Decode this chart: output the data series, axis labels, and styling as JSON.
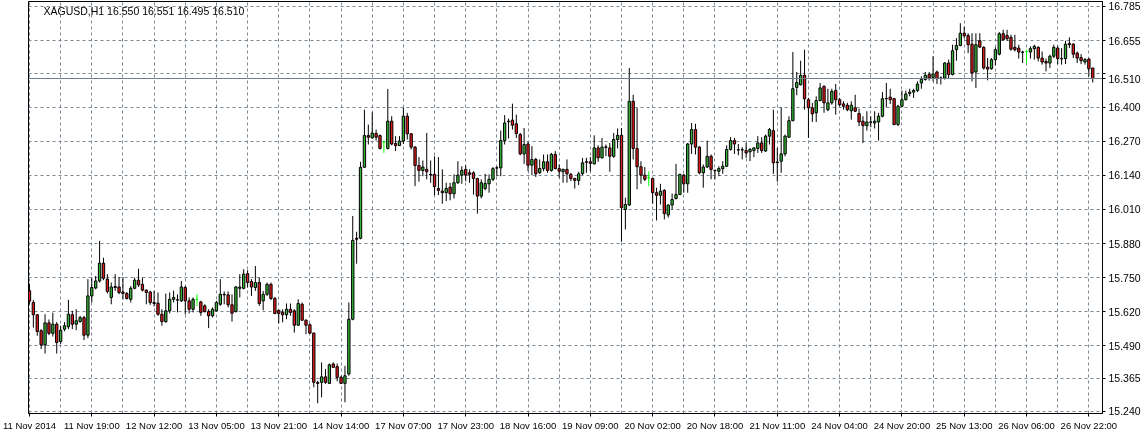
{
  "chart_data": {
    "type": "candlestick",
    "title": "XAGUSD,H1 16.550 16.551 16.495 16.510",
    "categories": [
      "11 Nov 2014",
      null,
      null,
      null,
      null,
      null,
      null,
      null,
      null,
      null,
      null,
      null,
      null,
      null,
      null,
      null,
      "11 Nov 19:00",
      null,
      null,
      null,
      null,
      null,
      null,
      null,
      null,
      null,
      null,
      null,
      null,
      null,
      null,
      null,
      "12 Nov 12:00",
      null,
      null,
      null,
      null,
      null,
      null,
      null,
      null,
      null,
      null,
      null,
      null,
      null,
      null,
      null,
      "13 Nov 05:00",
      null,
      null,
      null,
      null,
      null,
      null,
      null,
      null,
      null,
      null,
      null,
      null,
      null,
      null,
      null,
      "13 Nov 21:00",
      null,
      null,
      null,
      null,
      null,
      null,
      null,
      null,
      null,
      null,
      null,
      null,
      null,
      null,
      null,
      "14 Nov 14:00",
      null,
      null,
      null,
      null,
      null,
      null,
      null,
      null,
      null,
      null,
      null,
      null,
      null,
      null,
      null,
      "17 Nov 07:00",
      null,
      null,
      null,
      null,
      null,
      null,
      null,
      null,
      null,
      null,
      null,
      null,
      null,
      null,
      null,
      "17 Nov 23:00",
      null,
      null,
      null,
      null,
      null,
      null,
      null,
      null,
      null,
      null,
      null,
      null,
      null,
      null,
      null,
      "18 Nov 16:00",
      null,
      null,
      null,
      null,
      null,
      null,
      null,
      null,
      null,
      null,
      null,
      null,
      null,
      null,
      null,
      "19 Nov 09:00",
      null,
      null,
      null,
      null,
      null,
      null,
      null,
      null,
      null,
      null,
      null,
      null,
      null,
      null,
      null,
      "20 Nov 02:00",
      null,
      null,
      null,
      null,
      null,
      null,
      null,
      null,
      null,
      null,
      null,
      null,
      null,
      null,
      null,
      "20 Nov 18:00",
      null,
      null,
      null,
      null,
      null,
      null,
      null,
      null,
      null,
      null,
      null,
      null,
      null,
      null,
      null,
      "21 Nov 11:00",
      null,
      null,
      null,
      null,
      null,
      null,
      null,
      null,
      null,
      null,
      null,
      null,
      null,
      null,
      null,
      "24 Nov 04:00",
      null,
      null,
      null,
      null,
      null,
      null,
      null,
      null,
      null,
      null,
      null,
      null,
      null,
      null,
      null,
      "24 Nov 20:00",
      null,
      null,
      null,
      null,
      null,
      null,
      null,
      null,
      null,
      null,
      null,
      null,
      null,
      null,
      null,
      "25 Nov 13:00",
      null,
      null,
      null,
      null,
      null,
      null,
      null,
      null,
      null,
      null,
      null,
      null,
      null,
      null,
      null,
      "26 Nov 06:00",
      null,
      null,
      null,
      null,
      null,
      null,
      null,
      null,
      null,
      null,
      null,
      null,
      null,
      null,
      null,
      "26 Nov 22:00",
      null
    ],
    "ohlc": [
      [
        15.7,
        15.727,
        15.648,
        15.66
      ],
      [
        15.655,
        15.664,
        15.559,
        15.608
      ],
      [
        15.608,
        15.61,
        15.528,
        15.544
      ],
      [
        15.547,
        15.553,
        15.477,
        15.493
      ],
      [
        15.493,
        15.61,
        15.46,
        15.577
      ],
      [
        15.577,
        15.59,
        15.53,
        15.537
      ],
      [
        15.537,
        15.616,
        15.525,
        15.572
      ],
      [
        15.572,
        15.58,
        15.46,
        15.502
      ],
      [
        15.506,
        15.566,
        15.496,
        15.549
      ],
      [
        15.553,
        15.58,
        15.545,
        15.566
      ],
      [
        15.562,
        15.665,
        15.553,
        15.61
      ],
      [
        15.608,
        15.623,
        15.553,
        15.572
      ],
      [
        15.572,
        15.629,
        15.549,
        15.585
      ],
      [
        15.582,
        15.604,
        15.578,
        15.597
      ],
      [
        15.597,
        15.604,
        15.511,
        15.53
      ],
      [
        15.53,
        15.744,
        15.519,
        15.68
      ],
      [
        15.68,
        15.75,
        15.655,
        15.712
      ],
      [
        15.71,
        15.756,
        15.705,
        15.737
      ],
      [
        15.737,
        15.89,
        15.731,
        15.805
      ],
      [
        15.805,
        15.826,
        15.74,
        15.747
      ],
      [
        15.744,
        15.763,
        15.689,
        15.697
      ],
      [
        15.674,
        15.731,
        15.648,
        15.714
      ],
      [
        15.716,
        15.763,
        15.699,
        15.712
      ],
      [
        15.714,
        15.752,
        15.686,
        15.693
      ],
      [
        15.695,
        15.752,
        15.667,
        15.689
      ],
      [
        15.689,
        15.695,
        15.666,
        15.67
      ],
      [
        15.667,
        15.718,
        15.655,
        15.709
      ],
      [
        15.709,
        15.75,
        15.705,
        15.74
      ],
      [
        15.74,
        15.784,
        15.714,
        15.722
      ],
      [
        15.724,
        15.75,
        15.697,
        15.702
      ],
      [
        15.702,
        15.705,
        15.648,
        15.693
      ],
      [
        15.695,
        15.699,
        15.646,
        15.655
      ],
      [
        15.655,
        15.7,
        15.64,
        15.651
      ],
      [
        15.652,
        15.693,
        15.604,
        15.61
      ],
      [
        15.61,
        15.629,
        15.566,
        15.582
      ],
      [
        15.582,
        15.689,
        15.577,
        15.623
      ],
      [
        15.623,
        15.693,
        15.613,
        15.667
      ],
      [
        15.667,
        15.7,
        15.655,
        15.674
      ],
      [
        15.665,
        15.686,
        15.617,
        15.664
      ],
      [
        15.661,
        15.737,
        15.657,
        15.714
      ],
      [
        15.712,
        15.718,
        15.61,
        15.661
      ],
      [
        15.661,
        15.674,
        15.613,
        15.629
      ],
      [
        15.629,
        15.674,
        15.617,
        15.667
      ],
      [
        15.667,
        15.686,
        15.642,
        15.667
      ],
      [
        15.657,
        15.661,
        15.604,
        15.617
      ],
      [
        15.642,
        15.648,
        15.617,
        15.62
      ],
      [
        15.62,
        15.629,
        15.557,
        15.604
      ],
      [
        15.604,
        15.636,
        15.598,
        15.629
      ],
      [
        15.623,
        15.661,
        15.62,
        15.655
      ],
      [
        15.648,
        15.744,
        15.642,
        15.686
      ],
      [
        15.686,
        15.697,
        15.648,
        15.684
      ],
      [
        15.684,
        15.697,
        15.636,
        15.646
      ],
      [
        15.646,
        15.686,
        15.582,
        15.614
      ],
      [
        15.62,
        15.718,
        15.617,
        15.714
      ],
      [
        15.709,
        15.763,
        15.674,
        15.714
      ],
      [
        15.709,
        15.782,
        15.705,
        15.763
      ],
      [
        15.765,
        15.778,
        15.712,
        15.731
      ],
      [
        15.735,
        15.744,
        15.68,
        15.714
      ],
      [
        15.712,
        15.794,
        15.699,
        15.731
      ],
      [
        15.731,
        15.75,
        15.642,
        15.651
      ],
      [
        15.661,
        15.699,
        15.625,
        15.686
      ],
      [
        15.686,
        15.731,
        15.68,
        15.724
      ],
      [
        15.724,
        15.731,
        15.664,
        15.67
      ],
      [
        15.67,
        15.676,
        15.61,
        15.613
      ],
      [
        15.625,
        15.625,
        15.575,
        15.613
      ],
      [
        15.617,
        15.629,
        15.579,
        15.608
      ],
      [
        15.608,
        15.651,
        15.591,
        15.629
      ],
      [
        15.629,
        15.651,
        15.604,
        15.617
      ],
      [
        15.623,
        15.629,
        15.54,
        15.568
      ],
      [
        15.568,
        15.667,
        15.566,
        15.651
      ],
      [
        15.648,
        15.655,
        15.587,
        15.587
      ],
      [
        15.587,
        15.591,
        15.534,
        15.568
      ],
      [
        15.57,
        15.575,
        15.534,
        15.538
      ],
      [
        15.538,
        15.54,
        15.331,
        15.35
      ],
      [
        15.349,
        15.356,
        15.27,
        15.346
      ],
      [
        15.35,
        15.426,
        15.293,
        15.371
      ],
      [
        15.371,
        15.401,
        15.344,
        15.35
      ],
      [
        15.346,
        15.422,
        15.344,
        15.417
      ],
      [
        15.42,
        15.426,
        15.405,
        15.407
      ],
      [
        15.41,
        15.422,
        15.354,
        15.369
      ],
      [
        15.369,
        15.375,
        15.344,
        15.346
      ],
      [
        15.346,
        15.413,
        15.274,
        15.375
      ],
      [
        15.382,
        15.655,
        15.375,
        15.591
      ],
      [
        15.591,
        15.985,
        15.587,
        15.892
      ],
      [
        15.9,
        15.925,
        15.803,
        15.896
      ],
      [
        15.9,
        16.192,
        15.896,
        16.171
      ],
      [
        16.171,
        16.391,
        16.169,
        16.292
      ],
      [
        16.292,
        16.334,
        16.258,
        16.286
      ],
      [
        16.283,
        16.381,
        16.281,
        16.302
      ],
      [
        16.3,
        16.315,
        16.273,
        16.286
      ],
      [
        16.292,
        16.296,
        16.239,
        16.243
      ],
      [
        16.268,
        16.271,
        16.226,
        16.268
      ],
      [
        16.243,
        16.47,
        16.239,
        16.347
      ],
      [
        16.347,
        16.366,
        16.255,
        16.26
      ],
      [
        16.262,
        16.29,
        16.233,
        16.254
      ],
      [
        16.254,
        16.29,
        16.252,
        16.271
      ],
      [
        16.271,
        16.398,
        16.26,
        16.366
      ],
      [
        16.366,
        16.379,
        16.277,
        16.299
      ],
      [
        16.299,
        16.302,
        16.239,
        16.248
      ],
      [
        16.248,
        16.252,
        16.099,
        16.178
      ],
      [
        16.178,
        16.21,
        16.116,
        16.159
      ],
      [
        16.159,
        16.197,
        16.137,
        16.172
      ],
      [
        16.163,
        16.302,
        16.125,
        16.154
      ],
      [
        16.144,
        16.197,
        16.112,
        16.142
      ],
      [
        16.144,
        16.213,
        16.065,
        16.097
      ],
      [
        16.09,
        16.21,
        16.065,
        16.083
      ],
      [
        16.08,
        16.163,
        16.032,
        16.074
      ],
      [
        16.074,
        16.112,
        16.042,
        16.09
      ],
      [
        16.095,
        16.112,
        16.045,
        16.07
      ],
      [
        16.07,
        16.144,
        16.052,
        16.112
      ],
      [
        16.112,
        16.194,
        16.108,
        16.141
      ],
      [
        16.141,
        16.175,
        16.108,
        16.159
      ],
      [
        16.163,
        16.179,
        16.118,
        16.141
      ],
      [
        16.15,
        16.163,
        16.112,
        16.144
      ],
      [
        16.15,
        16.156,
        16.067,
        16.128
      ],
      [
        16.128,
        16.131,
        15.994,
        16.061
      ],
      [
        16.061,
        16.125,
        16.052,
        16.112
      ],
      [
        16.09,
        16.146,
        16.083,
        16.109
      ],
      [
        16.108,
        16.144,
        16.074,
        16.125
      ],
      [
        16.125,
        16.172,
        16.118,
        16.166
      ],
      [
        16.169,
        16.175,
        16.137,
        16.168
      ],
      [
        16.169,
        16.311,
        16.137,
        16.273
      ],
      [
        16.273,
        16.37,
        16.258,
        16.34
      ],
      [
        16.347,
        16.357,
        16.281,
        16.345
      ],
      [
        16.351,
        16.414,
        16.315,
        16.332
      ],
      [
        16.337,
        16.372,
        16.283,
        16.3
      ],
      [
        16.296,
        16.302,
        16.217,
        16.222
      ],
      [
        16.222,
        16.321,
        16.184,
        16.258
      ],
      [
        16.26,
        16.268,
        16.156,
        16.179
      ],
      [
        16.179,
        16.252,
        16.141,
        16.201
      ],
      [
        16.201,
        16.207,
        16.134,
        16.146
      ],
      [
        16.15,
        16.201,
        16.146,
        16.166
      ],
      [
        16.166,
        16.22,
        16.156,
        16.192
      ],
      [
        16.192,
        16.22,
        16.15,
        16.159
      ],
      [
        16.159,
        16.226,
        16.154,
        16.22
      ],
      [
        16.22,
        16.233,
        16.163,
        16.166
      ],
      [
        16.166,
        16.182,
        16.131,
        16.156
      ],
      [
        16.154,
        16.166,
        16.112,
        16.163
      ],
      [
        16.163,
        16.201,
        16.112,
        16.146
      ],
      [
        16.144,
        16.15,
        16.118,
        16.128
      ],
      [
        16.128,
        16.131,
        16.09,
        16.121
      ],
      [
        16.121,
        16.154,
        16.103,
        16.146
      ],
      [
        16.147,
        16.207,
        16.141,
        16.188
      ],
      [
        16.192,
        16.207,
        16.15,
        16.19
      ],
      [
        16.192,
        16.21,
        16.156,
        16.186
      ],
      [
        16.184,
        16.293,
        16.182,
        16.245
      ],
      [
        16.245,
        16.255,
        16.192,
        16.207
      ],
      [
        16.207,
        16.283,
        16.205,
        16.248
      ],
      [
        16.249,
        16.258,
        16.213,
        16.247
      ],
      [
        16.245,
        16.264,
        16.154,
        16.213
      ],
      [
        16.213,
        16.302,
        16.207,
        16.277
      ],
      [
        16.277,
        16.319,
        16.243,
        16.293
      ],
      [
        16.293,
        16.321,
        15.887,
        16.017
      ],
      [
        16.01,
        16.055,
        15.934,
        16.029
      ],
      [
        16.027,
        16.55,
        16.023,
        16.423
      ],
      [
        16.423,
        16.448,
        16.201,
        16.243
      ],
      [
        16.243,
        16.398,
        16.087,
        16.173
      ],
      [
        16.173,
        16.194,
        16.108,
        16.141
      ],
      [
        16.141,
        16.172,
        16.118,
        16.125
      ],
      [
        16.131,
        16.156,
        16.099,
        16.131
      ],
      [
        16.128,
        16.131,
        16.032,
        16.074
      ],
      [
        16.074,
        16.093,
        15.968,
        16.064
      ],
      [
        16.064,
        16.108,
        16.029,
        16.08
      ],
      [
        16.083,
        16.087,
        15.972,
        15.994
      ],
      [
        15.989,
        16.029,
        15.979,
        16.027
      ],
      [
        16.027,
        16.071,
        16.01,
        16.048
      ],
      [
        16.052,
        16.184,
        16.048,
        16.067
      ],
      [
        16.067,
        16.146,
        16.065,
        16.144
      ],
      [
        16.141,
        16.146,
        16.074,
        16.108
      ],
      [
        16.108,
        16.264,
        16.074,
        16.26
      ],
      [
        16.26,
        16.34,
        16.222,
        16.315
      ],
      [
        16.315,
        16.337,
        16.22,
        16.248
      ],
      [
        16.248,
        16.252,
        16.144,
        16.15
      ],
      [
        16.15,
        16.182,
        16.093,
        16.172
      ],
      [
        16.172,
        16.273,
        16.169,
        16.213
      ],
      [
        16.213,
        16.22,
        16.125,
        16.163
      ],
      [
        16.159,
        16.163,
        16.125,
        16.158
      ],
      [
        16.156,
        16.175,
        16.137,
        16.166
      ],
      [
        16.166,
        16.194,
        16.146,
        16.175
      ],
      [
        16.175,
        16.255,
        16.172,
        16.239
      ],
      [
        16.239,
        16.286,
        16.235,
        16.273
      ],
      [
        16.273,
        16.283,
        16.222,
        16.26
      ],
      [
        16.238,
        16.26,
        16.217,
        16.237
      ],
      [
        16.237,
        16.248,
        16.201,
        16.238
      ],
      [
        16.235,
        16.264,
        16.207,
        16.226
      ],
      [
        16.23,
        16.245,
        16.195,
        16.239
      ],
      [
        16.235,
        16.247,
        16.21,
        16.245
      ],
      [
        16.243,
        16.29,
        16.226,
        16.264
      ],
      [
        16.264,
        16.286,
        16.226,
        16.235
      ],
      [
        16.233,
        16.296,
        16.23,
        16.29
      ],
      [
        16.29,
        16.321,
        16.258,
        16.315
      ],
      [
        16.311,
        16.391,
        16.146,
        16.188
      ],
      [
        16.191,
        16.245,
        16.116,
        16.189
      ],
      [
        16.194,
        16.4,
        16.15,
        16.222
      ],
      [
        16.222,
        16.296,
        16.213,
        16.29
      ],
      [
        16.286,
        16.366,
        16.283,
        16.349
      ],
      [
        16.349,
        16.611,
        16.347,
        16.471
      ],
      [
        16.476,
        16.535,
        16.446,
        16.495
      ],
      [
        16.486,
        16.578,
        16.484,
        16.522
      ],
      [
        16.522,
        16.62,
        16.391,
        16.432
      ],
      [
        16.429,
        16.436,
        16.283,
        16.398
      ],
      [
        16.398,
        16.417,
        16.344,
        16.375
      ],
      [
        16.379,
        16.442,
        16.344,
        16.426
      ],
      [
        16.426,
        16.493,
        16.423,
        16.474
      ],
      [
        16.48,
        16.484,
        16.379,
        16.417
      ],
      [
        16.391,
        16.471,
        16.385,
        16.417
      ],
      [
        16.417,
        16.471,
        16.41,
        16.461
      ],
      [
        16.464,
        16.489,
        16.372,
        16.429
      ],
      [
        16.429,
        16.436,
        16.404,
        16.41
      ],
      [
        16.413,
        16.423,
        16.391,
        16.404
      ],
      [
        16.408,
        16.417,
        16.385,
        16.391
      ],
      [
        16.387,
        16.423,
        16.353,
        16.408
      ],
      [
        16.398,
        16.448,
        16.382,
        16.385
      ],
      [
        16.376,
        16.395,
        16.328,
        16.344
      ],
      [
        16.347,
        16.366,
        16.264,
        16.33
      ],
      [
        16.33,
        16.385,
        16.311,
        16.344
      ],
      [
        16.344,
        16.366,
        16.324,
        16.343
      ],
      [
        16.34,
        16.385,
        16.319,
        16.347
      ],
      [
        16.344,
        16.379,
        16.273,
        16.366
      ],
      [
        16.366,
        16.458,
        16.362,
        16.433
      ],
      [
        16.434,
        16.493,
        16.4,
        16.433
      ],
      [
        16.439,
        16.471,
        16.413,
        16.429
      ],
      [
        16.433,
        16.436,
        16.332,
        16.334
      ],
      [
        16.334,
        16.41,
        16.328,
        16.404
      ],
      [
        16.404,
        16.464,
        16.4,
        16.429
      ],
      [
        16.429,
        16.464,
        16.426,
        16.451
      ],
      [
        16.453,
        16.471,
        16.442,
        16.458
      ],
      [
        16.458,
        16.471,
        16.436,
        16.464
      ],
      [
        16.464,
        16.499,
        16.458,
        16.489
      ],
      [
        16.493,
        16.518,
        16.471,
        16.506
      ],
      [
        16.506,
        16.535,
        16.502,
        16.522
      ],
      [
        16.525,
        16.535,
        16.502,
        16.512
      ],
      [
        16.514,
        16.595,
        16.499,
        16.527
      ],
      [
        16.535,
        16.54,
        16.489,
        16.509
      ],
      [
        16.512,
        16.518,
        16.487,
        16.511
      ],
      [
        16.512,
        16.573,
        16.506,
        16.569
      ],
      [
        16.569,
        16.582,
        16.509,
        16.525
      ],
      [
        16.525,
        16.639,
        16.522,
        16.616
      ],
      [
        16.62,
        16.664,
        16.578,
        16.636
      ],
      [
        16.636,
        16.721,
        16.633,
        16.683
      ],
      [
        16.683,
        16.708,
        16.664,
        16.673
      ],
      [
        16.674,
        16.683,
        16.607,
        16.639
      ],
      [
        16.641,
        16.683,
        16.499,
        16.531
      ],
      [
        16.535,
        16.683,
        16.474,
        16.639
      ],
      [
        16.654,
        16.683,
        16.626,
        16.63
      ],
      [
        16.629,
        16.633,
        16.544,
        16.55
      ],
      [
        16.553,
        16.588,
        16.503,
        16.546
      ],
      [
        16.547,
        16.588,
        16.544,
        16.582
      ],
      [
        16.582,
        16.629,
        16.56,
        16.62
      ],
      [
        16.603,
        16.687,
        16.598,
        16.681
      ],
      [
        16.681,
        16.696,
        16.654,
        16.658
      ],
      [
        16.674,
        16.696,
        16.654,
        16.662
      ],
      [
        16.667,
        16.677,
        16.616,
        16.622
      ],
      [
        16.629,
        16.677,
        16.613,
        16.62
      ],
      [
        16.626,
        16.639,
        16.586,
        16.611
      ],
      [
        16.611,
        16.616,
        16.569,
        16.61
      ],
      [
        16.613,
        16.62,
        16.569,
        16.613
      ],
      [
        16.611,
        16.633,
        16.586,
        16.624
      ],
      [
        16.624,
        16.639,
        16.582,
        16.633
      ],
      [
        16.629,
        16.633,
        16.575,
        16.588
      ],
      [
        16.588,
        16.613,
        16.563,
        16.573
      ],
      [
        16.575,
        16.586,
        16.537,
        16.569
      ],
      [
        16.569,
        16.601,
        16.55,
        16.595
      ],
      [
        16.595,
        16.639,
        16.588,
        16.629
      ],
      [
        16.626,
        16.635,
        16.565,
        16.586
      ],
      [
        16.586,
        16.626,
        16.563,
        16.585
      ],
      [
        16.586,
        16.654,
        16.565,
        16.641
      ],
      [
        16.644,
        16.667,
        16.626,
        16.639
      ],
      [
        16.641,
        16.645,
        16.588,
        16.603
      ],
      [
        16.607,
        16.613,
        16.569,
        16.588
      ],
      [
        16.59,
        16.603,
        16.565,
        16.578
      ],
      [
        16.573,
        16.588,
        16.563,
        16.582
      ],
      [
        16.584,
        16.588,
        16.518,
        16.547
      ],
      [
        16.55,
        16.551,
        16.495,
        16.51
      ]
    ],
    "colors": [
      "#e01b1b",
      "#e01b1b",
      "#e01b1b",
      "#e01b1b",
      "#36b536",
      "#e01b1b",
      "#36b536",
      "#e01b1b",
      "#36b536",
      "#36b536",
      "#36b536",
      "#e01b1b",
      "#36b536",
      "#36b536",
      "#e01b1b",
      "#36b536",
      "#36b536",
      "#36b536",
      "#36b536",
      "#e01b1b",
      "#e01b1b",
      "#36b536",
      "#e01b1b",
      "#e01b1b",
      "#e01b1b",
      "#e01b1b",
      "#36b536",
      "#36b536",
      "#e01b1b",
      "#e01b1b",
      "#e01b1b",
      "#e01b1b",
      "#e01b1b",
      "#e01b1b",
      "#e01b1b",
      "#36b536",
      "#36b536",
      "#36b536",
      "#e01b1b",
      "#36b536",
      "#e01b1b",
      "#e01b1b",
      "#36b536",
      "#00ff00",
      "#e01b1b",
      "#e01b1b",
      "#e01b1b",
      "#36b536",
      "#36b536",
      "#36b536",
      "#e01b1b",
      "#e01b1b",
      "#e01b1b",
      "#36b536",
      "#36b536",
      "#36b536",
      "#e01b1b",
      "#e01b1b",
      "#36b536",
      "#e01b1b",
      "#36b536",
      "#36b536",
      "#e01b1b",
      "#e01b1b",
      "#e01b1b",
      "#e01b1b",
      "#36b536",
      "#e01b1b",
      "#e01b1b",
      "#36b536",
      "#e01b1b",
      "#e01b1b",
      "#e01b1b",
      "#e01b1b",
      "#e01b1b",
      "#36b536",
      "#e01b1b",
      "#36b536",
      "#e01b1b",
      "#e01b1b",
      "#e01b1b",
      "#36b536",
      "#36b536",
      "#36b536",
      "#e01b1b",
      "#36b536",
      "#36b536",
      "#e01b1b",
      "#36b536",
      "#e01b1b",
      "#e01b1b",
      "#00ff00",
      "#36b536",
      "#e01b1b",
      "#e01b1b",
      "#36b536",
      "#36b536",
      "#e01b1b",
      "#e01b1b",
      "#e01b1b",
      "#e01b1b",
      "#36b536",
      "#e01b1b",
      "#e01b1b",
      "#e01b1b",
      "#e01b1b",
      "#e01b1b",
      "#36b536",
      "#e01b1b",
      "#36b536",
      "#36b536",
      "#36b536",
      "#e01b1b",
      "#e01b1b",
      "#e01b1b",
      "#e01b1b",
      "#36b536",
      "#36b536",
      "#36b536",
      "#36b536",
      "#e01b1b",
      "#36b536",
      "#36b536",
      "#e01b1b",
      "#e01b1b",
      "#e01b1b",
      "#e01b1b",
      "#36b536",
      "#e01b1b",
      "#36b536",
      "#e01b1b",
      "#36b536",
      "#36b536",
      "#e01b1b",
      "#36b536",
      "#e01b1b",
      "#e01b1b",
      "#36b536",
      "#e01b1b",
      "#e01b1b",
      "#e01b1b",
      "#36b536",
      "#36b536",
      "#e01b1b",
      "#e01b1b",
      "#36b536",
      "#e01b1b",
      "#36b536",
      "#e01b1b",
      "#e01b1b",
      "#36b536",
      "#36b536",
      "#e01b1b",
      "#36b536",
      "#36b536",
      "#e01b1b",
      "#e01b1b",
      "#e01b1b",
      "#e01b1b",
      "#00ff00",
      "#e01b1b",
      "#e01b1b",
      "#36b536",
      "#e01b1b",
      "#36b536",
      "#36b536",
      "#36b536",
      "#36b536",
      "#e01b1b",
      "#36b536",
      "#36b536",
      "#e01b1b",
      "#e01b1b",
      "#36b536",
      "#36b536",
      "#e01b1b",
      "#e01b1b",
      "#36b536",
      "#36b536",
      "#36b536",
      "#36b536",
      "#e01b1b",
      "#e01b1b",
      "#36b536",
      "#e01b1b",
      "#36b536",
      "#36b536",
      "#36b536",
      "#e01b1b",
      "#36b536",
      "#36b536",
      "#e01b1b",
      "#e01b1b",
      "#36b536",
      "#36b536",
      "#36b536",
      "#36b536",
      "#36b536",
      "#36b536",
      "#e01b1b",
      "#e01b1b",
      "#e01b1b",
      "#36b536",
      "#36b536",
      "#e01b1b",
      "#36b536",
      "#36b536",
      "#e01b1b",
      "#e01b1b",
      "#e01b1b",
      "#e01b1b",
      "#36b536",
      "#e01b1b",
      "#e01b1b",
      "#e01b1b",
      "#36b536",
      "#e01b1b",
      "#36b536",
      "#36b536",
      "#36b536",
      "#e01b1b",
      "#e01b1b",
      "#e01b1b",
      "#36b536",
      "#36b536",
      "#36b536",
      "#36b536",
      "#36b536",
      "#36b536",
      "#36b536",
      "#36b536",
      "#e01b1b",
      "#36b536",
      "#e01b1b",
      "#e01b1b",
      "#36b536",
      "#e01b1b",
      "#36b536",
      "#36b536",
      "#36b536",
      "#e01b1b",
      "#e01b1b",
      "#e01b1b",
      "#36b536",
      "#e01b1b",
      "#e01b1b",
      "#e01b1b",
      "#36b536",
      "#36b536",
      "#36b536",
      "#e01b1b",
      "#e01b1b",
      "#e01b1b",
      "#e01b1b",
      "#e01b1b",
      "#e01b1b",
      "#00ff00",
      "#36b536",
      "#36b536",
      "#e01b1b",
      "#e01b1b",
      "#e01b1b",
      "#36b536",
      "#36b536",
      "#e01b1b",
      "#e01b1b",
      "#36b536",
      "#e01b1b",
      "#e01b1b",
      "#e01b1b",
      "#e01b1b",
      "#36b536",
      "#e01b1b",
      "#e01b1b"
    ],
    "color": "#000000",
    "ylim": [
      15.231,
      16.804
    ],
    "yticks": [
      {
        "value": 15.24,
        "label": "15.240"
      },
      15.365,
      {
        "value": 15.49,
        "label": "15.490"
      },
      {
        "value": 15.62,
        "label": "15.620"
      },
      {
        "value": 15.75,
        "label": "15.750"
      },
      {
        "value": 15.88,
        "label": "15.880"
      },
      {
        "value": 16.01,
        "label": "16.010"
      },
      {
        "value": 16.14,
        "label": "16.140"
      },
      {
        "value": 16.27,
        "label": "16.270"
      },
      {
        "value": 16.4,
        "label": "16.400"
      },
      {
        "value": 16.53,
        "label": null
      },
      16.655,
      16.785
    ],
    "grid": true,
    "ref_lines": [
      {
        "axis": "y",
        "value": 16.51,
        "label": "16.510",
        "color": "#708090"
      }
    ]
  }
}
